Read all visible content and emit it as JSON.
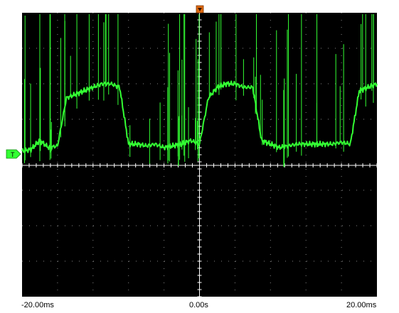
{
  "scope": {
    "time_axis_labels": [
      "-20.00ms",
      "0.00s",
      "20.00ms"
    ],
    "trigger_label": "T",
    "colors": {
      "background": "#000000",
      "grid": "#bdbdbd",
      "trace": "#33ff33",
      "trigger_marker": "#e06a10",
      "channel_marker": "#33ff33"
    },
    "icons": {
      "trigger_position": "trigger-position-marker-icon",
      "channel_level": "channel-trigger-level-icon"
    }
  },
  "chart_data": {
    "type": "line",
    "title": "",
    "xlabel": "",
    "ylabel": "",
    "xlim": [
      -20,
      20
    ],
    "ylim": [
      -4,
      4
    ],
    "grid": true,
    "series": [
      {
        "x": [
          -20,
          -19,
          -18,
          -17,
          -16,
          -15,
          -14,
          -13,
          -12,
          -11,
          -10,
          -9,
          -8,
          -7,
          -6,
          -5,
          -4,
          -3,
          -2,
          -1,
          0,
          1,
          2,
          3,
          4,
          5,
          6,
          7,
          8,
          9,
          10,
          11,
          12,
          13,
          14,
          15,
          16,
          17,
          18,
          19,
          20
        ],
        "y": [
          0.1,
          0.15,
          0.4,
          0.2,
          0.25,
          1.6,
          1.7,
          1.8,
          1.9,
          2.0,
          2.0,
          1.9,
          0.3,
          0.3,
          0.25,
          0.3,
          0.2,
          0.25,
          0.3,
          0.4,
          0.3,
          1.6,
          1.9,
          2.0,
          2.0,
          1.9,
          1.9,
          0.4,
          0.3,
          0.2,
          0.25,
          0.3,
          0.3,
          0.3,
          0.3,
          0.3,
          0.35,
          0.3,
          1.8,
          1.9,
          2.0
        ]
      }
    ]
  }
}
